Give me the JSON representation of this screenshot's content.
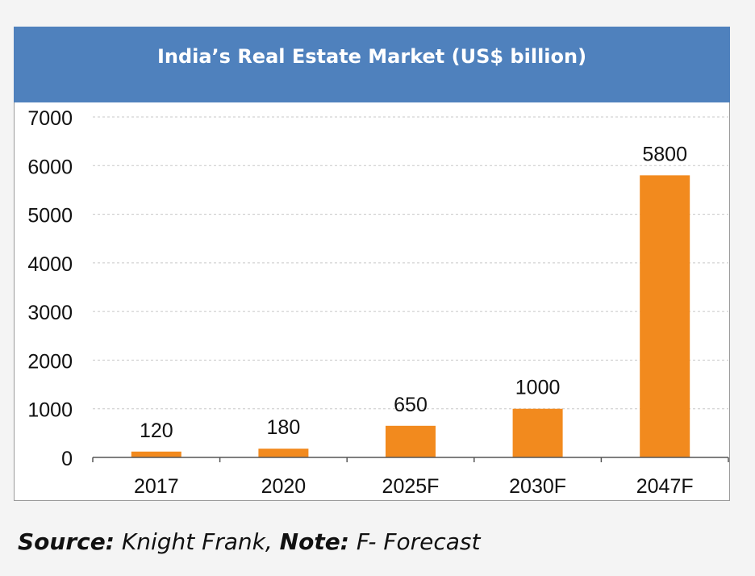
{
  "chart_data": {
    "type": "bar",
    "title": "India’s Real Estate Market (US$ billion)",
    "categories": [
      "2017",
      "2020",
      "2025F",
      "2030F",
      "2047F"
    ],
    "values": [
      120,
      180,
      650,
      1000,
      5800
    ],
    "data_labels": [
      "120",
      "180",
      "650",
      "1000",
      "5800"
    ],
    "ylim": [
      0,
      7000
    ],
    "yticks": [
      0,
      1000,
      2000,
      3000,
      4000,
      5000,
      6000,
      7000
    ],
    "xlabel": "",
    "ylabel": "",
    "grid": true,
    "bar_color": "#f28a1e",
    "title_background": "#4f81bd"
  },
  "footer": {
    "source_label": "Source:",
    "source_text": " Knight Frank, ",
    "note_label": "Note:",
    "note_text": " F- Forecast"
  }
}
